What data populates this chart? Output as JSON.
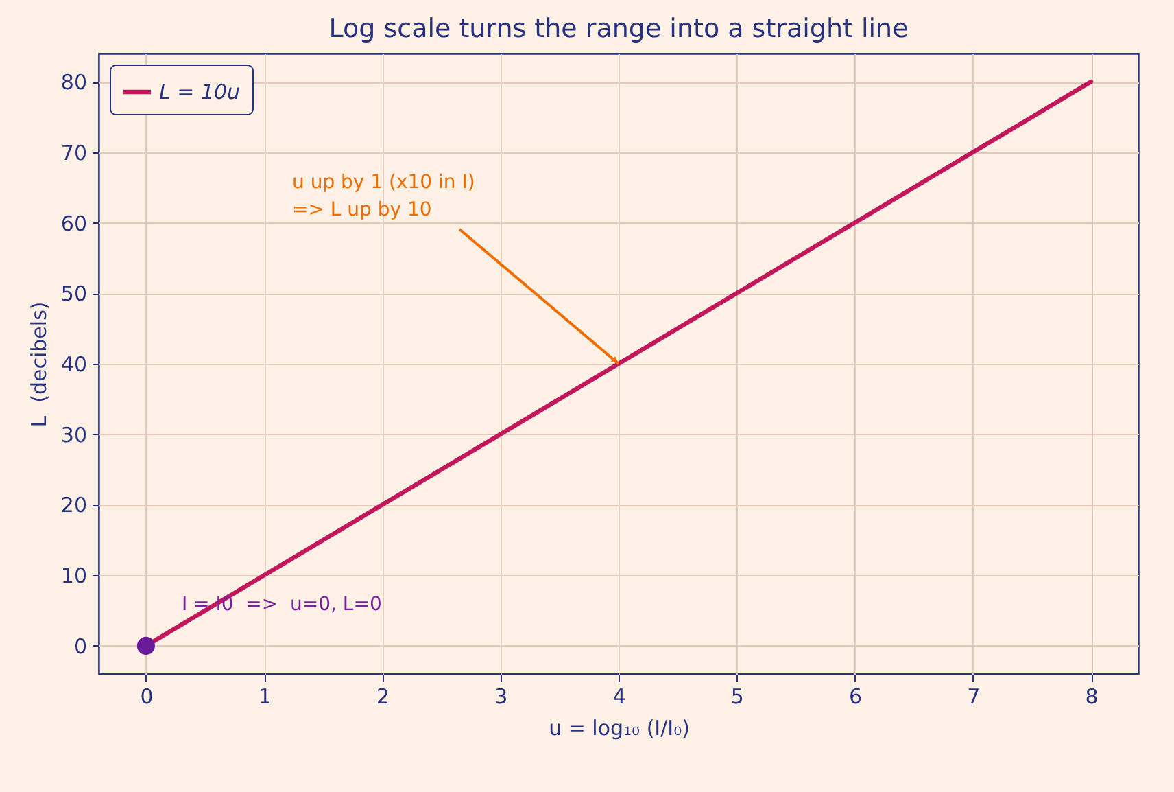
{
  "chart_data": {
    "type": "line",
    "title": "Log scale turns the range into a straight line",
    "xlabel": "u = log₁₀ (I/I₀)",
    "ylabel": "L  (decibels)",
    "xlim": [
      -0.4,
      8.4
    ],
    "xticks": [
      0,
      1,
      2,
      3,
      4,
      5,
      6,
      7,
      8
    ],
    "ylim": [
      -4,
      84
    ],
    "yticks": [
      0,
      10,
      20,
      30,
      40,
      50,
      60,
      70,
      80
    ],
    "grid": true,
    "legend": "top left",
    "series": [
      {
        "name": "L = 10u",
        "color": "#c2185b",
        "x": [
          0,
          1,
          2,
          3,
          4,
          5,
          6,
          7,
          8
        ],
        "values": [
          0,
          10,
          20,
          30,
          40,
          50,
          60,
          70,
          80
        ]
      },
      {
        "type": "scatter",
        "color": "#6a1b9a",
        "marker": "circle",
        "x": [
          0
        ],
        "values": [
          0
        ]
      }
    ],
    "annotations": [
      {
        "text": "u up by 1 (x10 in I)\n=> L up by 10",
        "x": 4,
        "y": 40
      },
      {
        "text": "I = I0  =>  u=0, L=0",
        "x": 0,
        "y": 0
      }
    ]
  }
}
